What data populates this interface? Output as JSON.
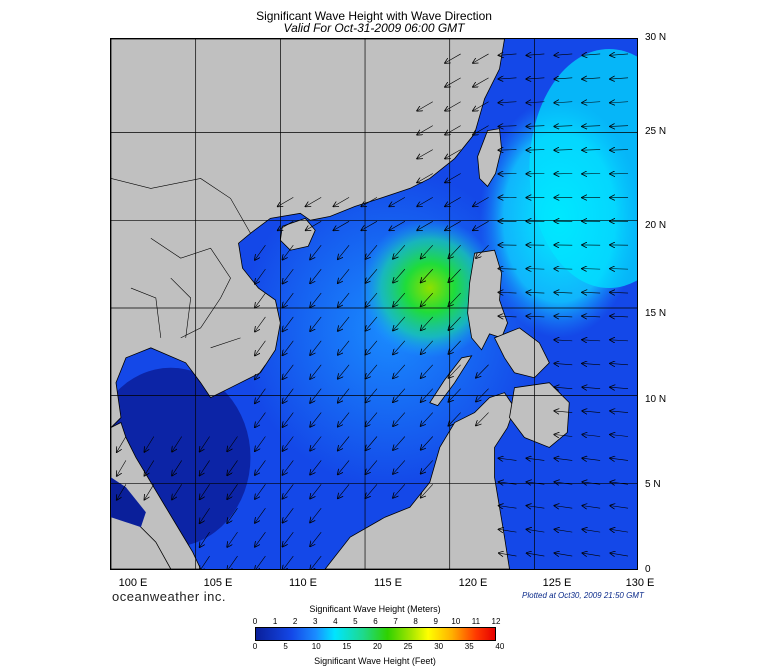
{
  "title": "Significant Wave Height with Wave Direction",
  "subtitle": "Valid For Oct-31-2009 06:00 GMT",
  "brand": "oceanweather inc.",
  "plotted": "Plotted at Oct30, 2009 21:50 GMT",
  "lat_labels": [
    "30 N",
    "25 N",
    "20 N",
    "15 N",
    "10 N",
    "5 N",
    "0"
  ],
  "lon_labels": [
    "100 E",
    "105 E",
    "110 E",
    "115 E",
    "120 E",
    "125 E",
    "130 E"
  ],
  "colorbar": {
    "meters_title": "Significant Wave Height (Meters)",
    "feet_title": "Significant Wave Height (Feet)",
    "meters_ticks": [
      "0",
      "1",
      "2",
      "3",
      "4",
      "5",
      "6",
      "7",
      "8",
      "9",
      "10",
      "11",
      "12"
    ],
    "feet_ticks": [
      "0",
      "5",
      "10",
      "15",
      "20",
      "25",
      "30",
      "35",
      "40"
    ]
  },
  "colors": {
    "land": "#c0c0c0",
    "deep_blue": "#0a1f9a",
    "blue": "#1448e8",
    "cyan": "#00e5ff",
    "green": "#2fd100"
  }
}
